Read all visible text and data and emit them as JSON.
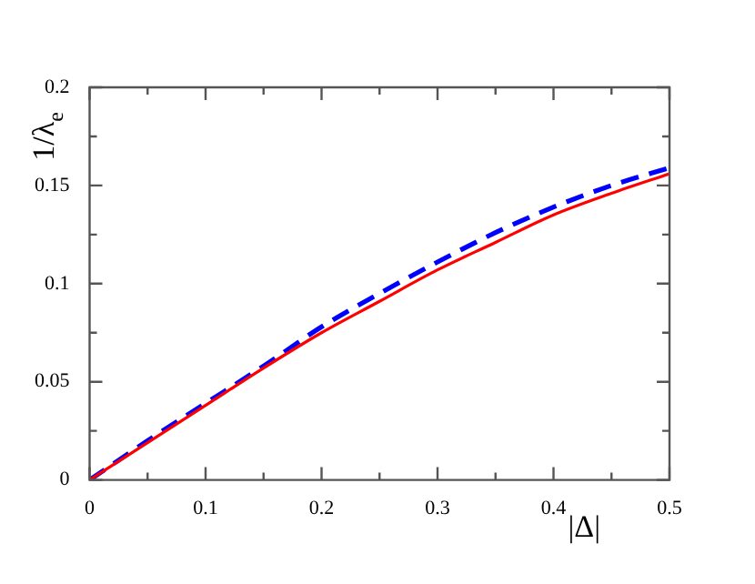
{
  "chart_data": {
    "type": "line",
    "xlabel": "|Δ|",
    "ylabel": "1/λ$_{e}$",
    "x": [
      0,
      0.05,
      0.1,
      0.15,
      0.2,
      0.25,
      0.3,
      0.35,
      0.4,
      0.45,
      0.5
    ],
    "series": [
      {
        "color": "#ff0000",
        "line_style": "solid",
        "values": [
          0,
          0.019,
          0.038,
          0.057,
          0.075,
          0.091,
          0.107,
          0.121,
          0.135,
          0.146,
          0.156
        ]
      },
      {
        "color": "#0000ff",
        "line_style": "dashed",
        "values": [
          0,
          0.02,
          0.039,
          0.058,
          0.078,
          0.095,
          0.111,
          0.126,
          0.139,
          0.15,
          0.159
        ]
      }
    ],
    "xlim": [
      0,
      0.5
    ],
    "xticks": [
      0,
      {
        "value": 0.05,
        "label": null
      },
      0.1,
      {
        "value": 0.15,
        "label": null
      },
      0.2,
      {
        "value": 0.25,
        "label": null
      },
      0.3,
      {
        "value": 0.35,
        "label": null
      },
      0.4,
      {
        "value": 0.45,
        "label": null
      },
      0.5
    ],
    "ylim": [
      0,
      0.2
    ],
    "yticks": [
      0,
      {
        "value": 0.025,
        "label": null
      },
      0.05,
      {
        "value": 0.075,
        "label": null
      },
      0.1,
      {
        "value": 0.125,
        "label": null
      },
      0.15,
      {
        "value": 0.175,
        "label": null
      },
      0.2
    ],
    "grid": false,
    "legend": false,
    "marker": "none"
  }
}
